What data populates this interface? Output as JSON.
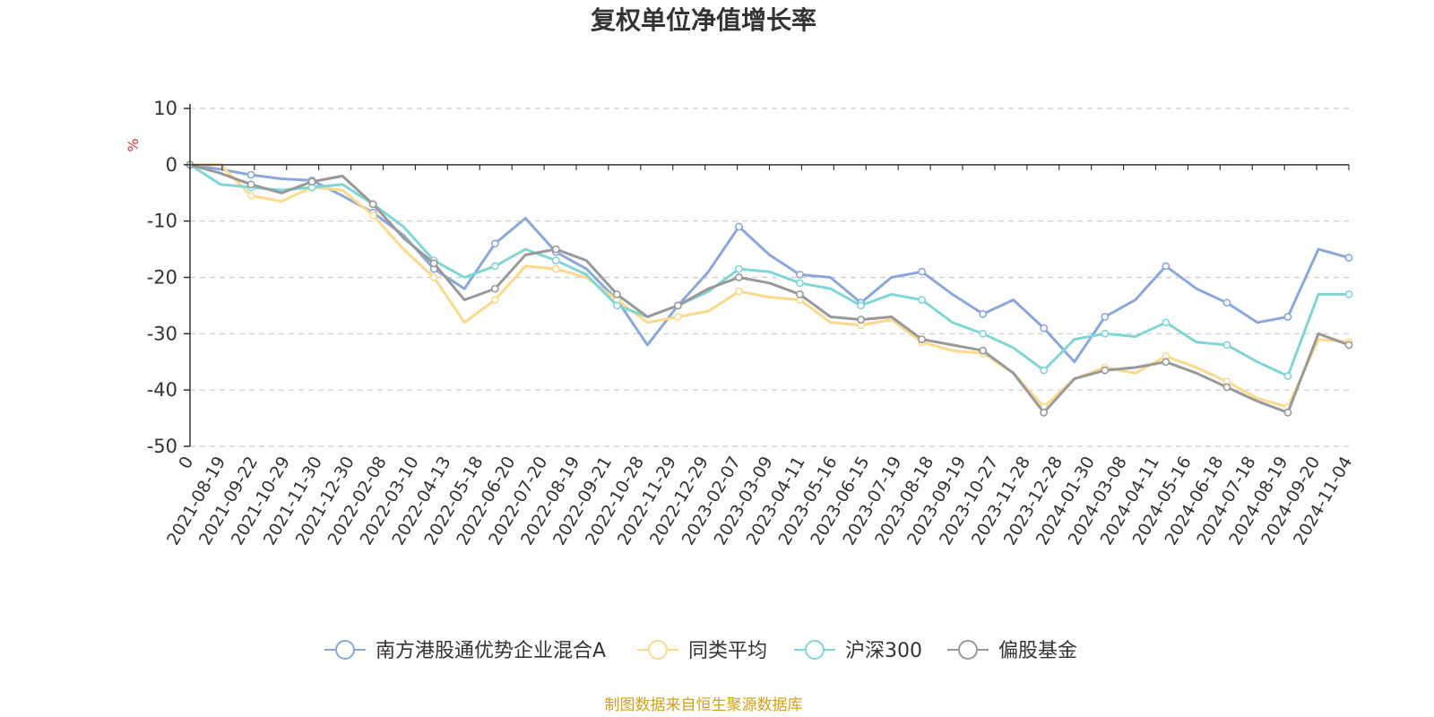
{
  "chart_data": {
    "type": "line",
    "title": "复权单位净值增长率",
    "ylabel": "%",
    "ylim": [
      -50,
      10
    ],
    "yticks": [
      10,
      0,
      -10,
      -20,
      -30,
      -40,
      -50
    ],
    "grid": "horizontal dashed",
    "legend_position": "bottom",
    "x_tick_labels": [
      "0",
      "2021-08-19",
      "2021-09-22",
      "2021-10-29",
      "2021-11-30",
      "2021-12-30",
      "2022-02-08",
      "2022-03-10",
      "2022-04-13",
      "2022-05-18",
      "2022-06-20",
      "2022-07-20",
      "2022-08-19",
      "2022-09-21",
      "2022-10-28",
      "2022-11-29",
      "2022-12-29",
      "2023-02-07",
      "2023-03-09",
      "2023-04-11",
      "2023-05-16",
      "2023-06-15",
      "2023-07-19",
      "2023-08-18",
      "2023-09-19",
      "2023-10-27",
      "2023-11-28",
      "2023-12-28",
      "2024-01-30",
      "2024-03-08",
      "2024-04-11",
      "2024-05-16",
      "2024-06-18",
      "2024-07-18",
      "2024-08-19",
      "2024-09-20",
      "2024-11-04"
    ],
    "series": [
      {
        "name": "南方港股通优势企业混合A",
        "color": "#8aa8dc",
        "values": [
          0,
          -0.8,
          -1.8,
          -2.5,
          -2.8,
          -5.5,
          -8.5,
          -12.5,
          -18.5,
          -22,
          -14,
          -9.5,
          -15.5,
          -18.5,
          -24,
          -32,
          -25,
          -19,
          -11,
          -16,
          -19.5,
          -20,
          -24.5,
          -20,
          -19,
          -23,
          -26.5,
          -24,
          -29,
          -35,
          -27,
          -24,
          -18,
          -22,
          -24.5,
          -28,
          -27,
          -15,
          -16.5
        ]
      },
      {
        "name": "同类平均",
        "color": "#fdd98c",
        "values": [
          0,
          0,
          -5.5,
          -6.5,
          -4,
          -4.5,
          -9,
          -15,
          -20,
          -28,
          -24,
          -18,
          -18.5,
          -20,
          -24,
          -28,
          -27,
          -26,
          -22.5,
          -23.5,
          -24,
          -28,
          -28.5,
          -27.5,
          -31.5,
          -33,
          -33.5,
          -37,
          -43,
          -38,
          -36,
          -37,
          -34,
          -36,
          -38.5,
          -41.5,
          -43,
          -31,
          -31.5
        ]
      },
      {
        "name": "沪深300",
        "color": "#7fd6d6",
        "values": [
          0,
          -3.5,
          -4,
          -4.5,
          -4,
          -3.5,
          -7,
          -11,
          -17,
          -20,
          -18,
          -15,
          -17,
          -19.5,
          -25,
          -27,
          -25,
          -22.5,
          -18.5,
          -19,
          -21,
          -22,
          -25,
          -23,
          -24,
          -28,
          -30,
          -32.5,
          -36.5,
          -31,
          -30,
          -30.5,
          -28,
          -31.5,
          -32,
          -35,
          -37.5,
          -23,
          -23
        ]
      },
      {
        "name": "偏股基金",
        "color": "#999999",
        "values": [
          0,
          -1.5,
          -3.5,
          -5,
          -3,
          -2,
          -7,
          -13,
          -17.5,
          -24,
          -22,
          -16,
          -15,
          -17,
          -23,
          -27,
          -25,
          -22,
          -20,
          -21,
          -23,
          -27,
          -27.5,
          -27,
          -31,
          -32,
          -33,
          -37,
          -44,
          -38,
          -36.5,
          -36,
          -35,
          -37,
          -39.5,
          -42,
          -44,
          -30,
          -32
        ]
      }
    ]
  },
  "legend": [
    {
      "label": "南方港股通优势企业混合A",
      "color": "#8aa8dc"
    },
    {
      "label": "同类平均",
      "color": "#fdd98c"
    },
    {
      "label": "沪深300",
      "color": "#7fd6d6"
    },
    {
      "label": "偏股基金",
      "color": "#999999"
    }
  ],
  "source": "制图数据来自恒生聚源数据库",
  "colors": {
    "title": "#333333",
    "axis": "#333333",
    "grid": "#cccccc",
    "ylabel": "#e03030",
    "source": "#d4a017"
  }
}
